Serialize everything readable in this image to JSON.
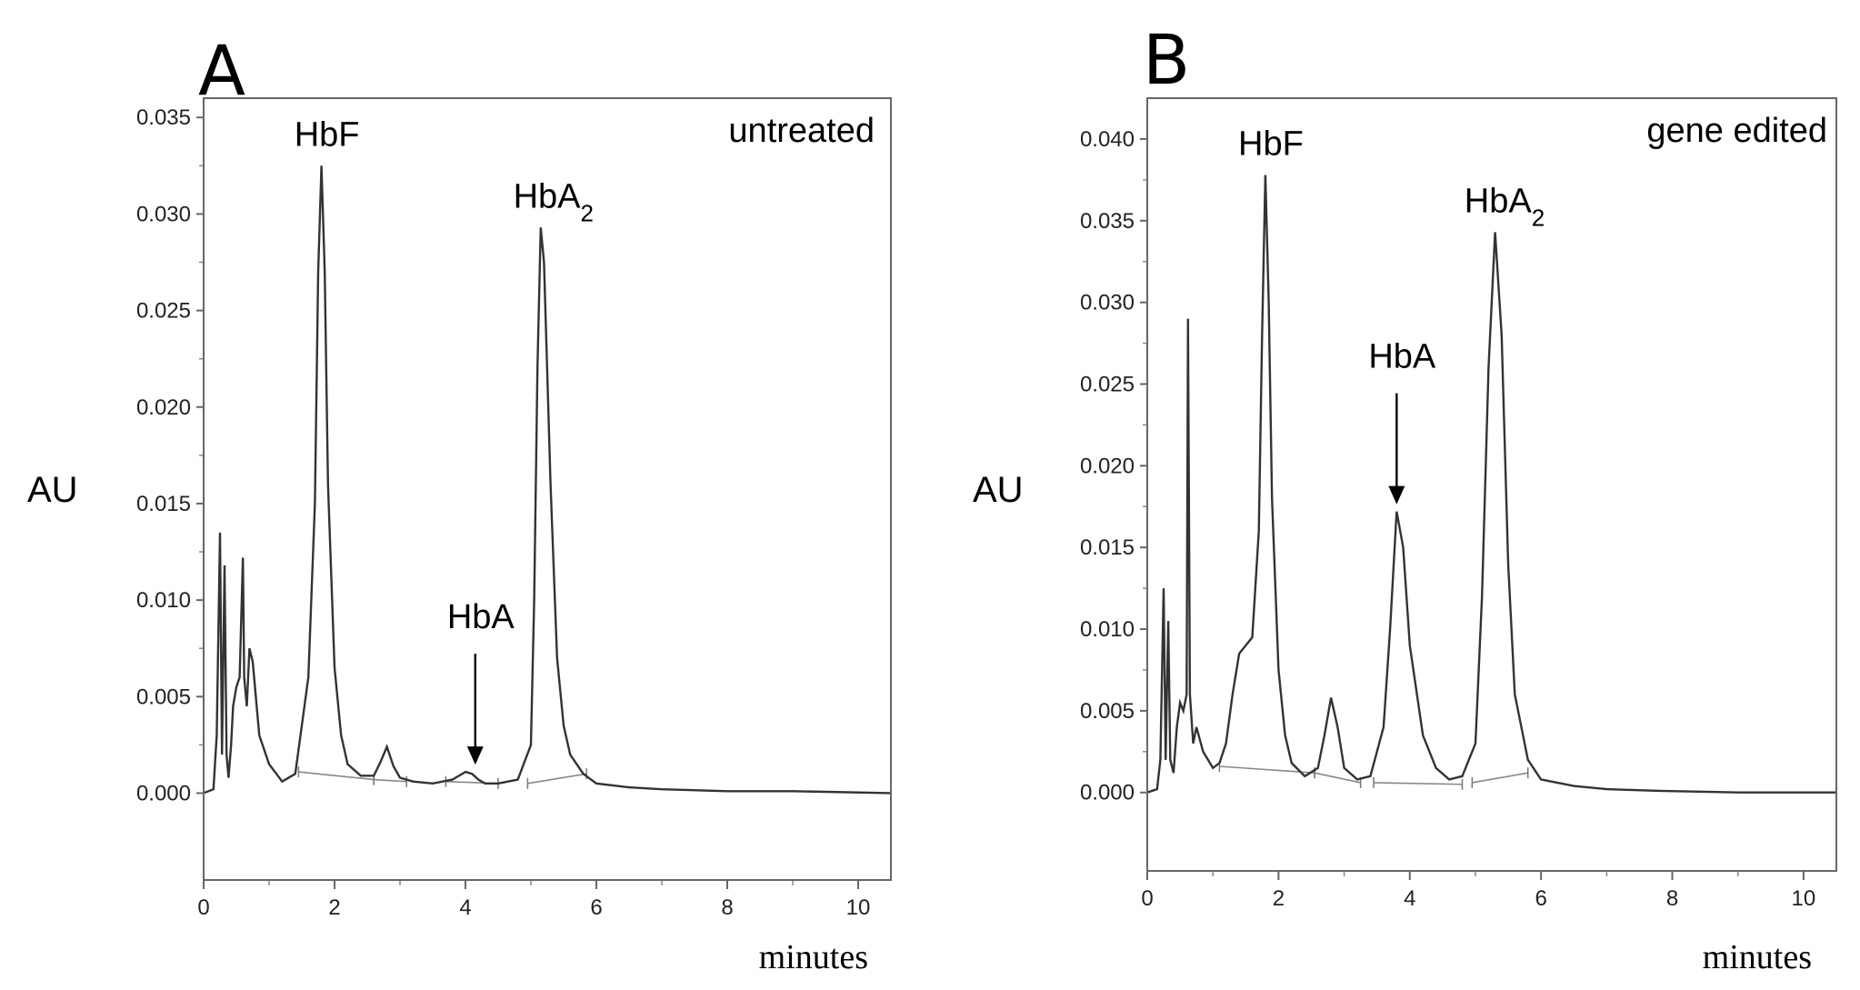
{
  "chart_data": [
    {
      "panel": "A",
      "type": "line",
      "condition_label": "untreated",
      "xlabel": "minutes",
      "ylabel": "AU",
      "xlim": [
        0,
        10.5
      ],
      "ylim": [
        -0.0045,
        0.036
      ],
      "x_ticks": [
        "0",
        "2",
        "4",
        "6",
        "8",
        "10"
      ],
      "y_ticks": [
        "0.000",
        "0.005",
        "0.010",
        "0.015",
        "0.020",
        "0.025",
        "0.030",
        "0.035"
      ],
      "series": [
        {
          "x": [
            0,
            0.15,
            0.2,
            0.25,
            0.28,
            0.32,
            0.35,
            0.38,
            0.42,
            0.45,
            0.5,
            0.55,
            0.6,
            0.62,
            0.66,
            0.7,
            0.75,
            0.85,
            1.0,
            1.2,
            1.4,
            1.6,
            1.7,
            1.75,
            1.8,
            1.85,
            1.9,
            2.0,
            2.1,
            2.2,
            2.4,
            2.6,
            2.7,
            2.8,
            2.9,
            3.0,
            3.2,
            3.5,
            3.8,
            4.0,
            4.1,
            4.2,
            4.3,
            4.5,
            4.8,
            5.0,
            5.05,
            5.1,
            5.15,
            5.2,
            5.3,
            5.4,
            5.5,
            5.6,
            5.8,
            6.0,
            6.5,
            7.0,
            8.0,
            9.0,
            10.5
          ],
          "y": [
            0.0,
            0.0002,
            0.003,
            0.0135,
            0.002,
            0.0118,
            0.002,
            0.0008,
            0.0025,
            0.0045,
            0.0055,
            0.006,
            0.0122,
            0.006,
            0.0045,
            0.0075,
            0.0068,
            0.003,
            0.0015,
            0.0006,
            0.001,
            0.006,
            0.015,
            0.027,
            0.0325,
            0.027,
            0.016,
            0.0065,
            0.003,
            0.0015,
            0.0009,
            0.0009,
            0.0016,
            0.0024,
            0.0014,
            0.0008,
            0.0006,
            0.0005,
            0.0007,
            0.0011,
            0.001,
            0.0007,
            0.0005,
            0.0005,
            0.0007,
            0.0025,
            0.01,
            0.022,
            0.0293,
            0.0275,
            0.016,
            0.007,
            0.0035,
            0.002,
            0.001,
            0.0005,
            0.0003,
            0.0002,
            0.0001,
            0.0001,
            0.0
          ]
        }
      ],
      "annotations": [
        {
          "text": "HbF",
          "x": 1.8,
          "y": 0.0325
        },
        {
          "text": "HbA",
          "x": 4.15,
          "y": 0.0011,
          "arrow": true
        },
        {
          "text": "HbA",
          "sub": "2",
          "x": 5.15,
          "y": 0.0293
        }
      ]
    },
    {
      "panel": "B",
      "type": "line",
      "condition_label": "gene edited",
      "xlabel": "minutes",
      "ylabel": "AU",
      "xlim": [
        0,
        10.5
      ],
      "ylim": [
        -0.0048,
        0.0425
      ],
      "x_ticks": [
        "0",
        "2",
        "4",
        "6",
        "8",
        "10"
      ],
      "y_ticks": [
        "0.000",
        "0.005",
        "0.010",
        "0.015",
        "0.020",
        "0.025",
        "0.030",
        "0.035",
        "0.040"
      ],
      "series": [
        {
          "x": [
            0,
            0.15,
            0.2,
            0.25,
            0.28,
            0.32,
            0.35,
            0.4,
            0.45,
            0.5,
            0.55,
            0.6,
            0.62,
            0.65,
            0.7,
            0.75,
            0.85,
            1.0,
            1.1,
            1.2,
            1.3,
            1.4,
            1.5,
            1.6,
            1.7,
            1.75,
            1.8,
            1.85,
            1.9,
            2.0,
            2.1,
            2.2,
            2.4,
            2.6,
            2.7,
            2.8,
            2.9,
            3.0,
            3.2,
            3.4,
            3.6,
            3.7,
            3.8,
            3.9,
            4.0,
            4.2,
            4.4,
            4.6,
            4.8,
            5.0,
            5.1,
            5.2,
            5.3,
            5.4,
            5.5,
            5.6,
            5.8,
            6.0,
            6.5,
            7.0,
            7.8,
            9.0,
            10.5
          ],
          "y": [
            0.0,
            0.0002,
            0.002,
            0.0125,
            0.002,
            0.0105,
            0.002,
            0.0012,
            0.004,
            0.0055,
            0.005,
            0.006,
            0.029,
            0.006,
            0.003,
            0.004,
            0.0025,
            0.0015,
            0.0018,
            0.003,
            0.006,
            0.0085,
            0.009,
            0.0095,
            0.016,
            0.028,
            0.0378,
            0.03,
            0.018,
            0.0075,
            0.0035,
            0.0018,
            0.001,
            0.0015,
            0.0035,
            0.0058,
            0.004,
            0.0015,
            0.0008,
            0.001,
            0.004,
            0.01,
            0.0172,
            0.015,
            0.009,
            0.0035,
            0.0015,
            0.0008,
            0.001,
            0.003,
            0.012,
            0.026,
            0.0343,
            0.028,
            0.014,
            0.006,
            0.002,
            0.0008,
            0.0004,
            0.0002,
            0.0001,
            0.0,
            0.0
          ]
        }
      ],
      "annotations": [
        {
          "text": "HbF",
          "x": 1.8,
          "y": 0.0378
        },
        {
          "text": "HbA",
          "x": 3.8,
          "y": 0.0172,
          "arrow": true
        },
        {
          "text": "HbA",
          "sub": "2",
          "x": 5.25,
          "y": 0.0343
        }
      ]
    }
  ]
}
